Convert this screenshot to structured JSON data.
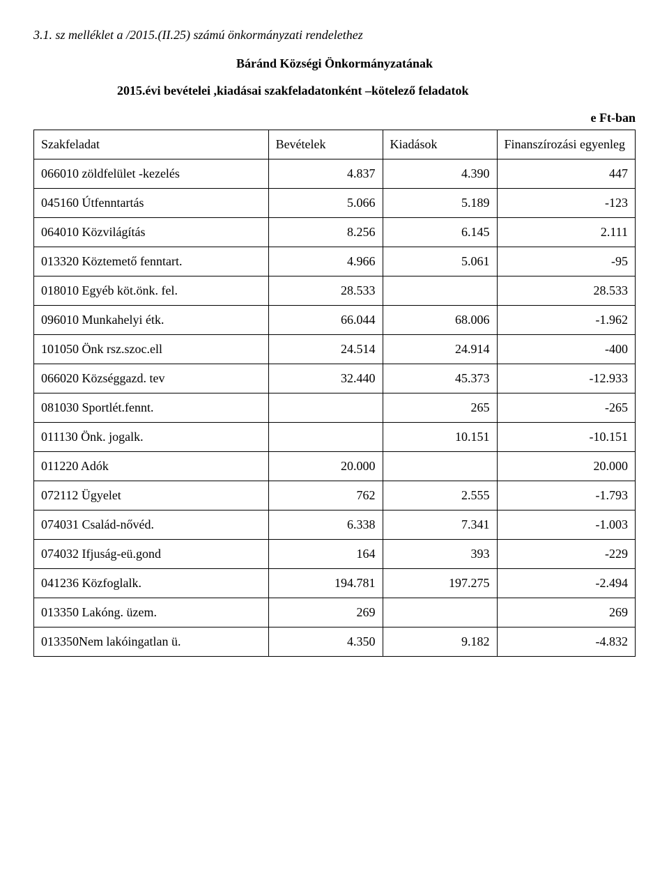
{
  "heading": {
    "line1": "3.1. sz melléklet a  /2015.(II.25) számú önkormányzati rendelethez",
    "line2": "Báránd Községi Önkormányzatának",
    "line3": "2015.évi bevételei ,kiadásai szakfeladatonként –kötelező feladatok",
    "unit": "e Ft-ban"
  },
  "table": {
    "columns": [
      "Szakfeladat",
      "Bevételek",
      "Kiadások",
      "Finanszírozási egyenleg"
    ],
    "rows": [
      {
        "label": "066010 zöldfelület -kezelés",
        "bev": "4.837",
        "kiad": "4.390",
        "egy": "447"
      },
      {
        "label": "045160 Útfenntartás",
        "bev": "5.066",
        "kiad": "5.189",
        "egy": "-123"
      },
      {
        "label": "064010 Közvilágítás",
        "bev": "8.256",
        "kiad": "6.145",
        "egy": "2.111"
      },
      {
        "label": "013320 Köztemető fenntart.",
        "bev": "4.966",
        "kiad": "5.061",
        "egy": "-95"
      },
      {
        "label": "018010 Egyéb köt.önk. fel.",
        "bev": "28.533",
        "kiad": "",
        "egy": "28.533"
      },
      {
        "label": "096010 Munkahelyi étk.",
        "bev": "66.044",
        "kiad": "68.006",
        "egy": "-1.962"
      },
      {
        "label": "101050 Önk rsz.szoc.ell",
        "bev": "24.514",
        "kiad": "24.914",
        "egy": "-400"
      },
      {
        "label": "066020 Községgazd. tev",
        "bev": "32.440",
        "kiad": "45.373",
        "egy": "-12.933"
      },
      {
        "label": "081030 Sportlét.fennt.",
        "bev": "",
        "kiad": "265",
        "egy": "-265"
      },
      {
        "label": "011130 Önk. jogalk.",
        "bev": "",
        "kiad": "10.151",
        "egy": "-10.151"
      },
      {
        "label": "011220 Adók",
        "bev": "20.000",
        "kiad": "",
        "egy": "20.000"
      },
      {
        "label": "072112 Ügyelet",
        "bev": "762",
        "kiad": "2.555",
        "egy": "-1.793"
      },
      {
        "label": "074031 Család-nővéd.",
        "bev": "6.338",
        "kiad": "7.341",
        "egy": "-1.003"
      },
      {
        "label": "074032 Ifjuság-eü.gond",
        "bev": "164",
        "kiad": "393",
        "egy": "-229"
      },
      {
        "label": "041236 Közfoglalk.",
        "bev": "194.781",
        "kiad": "197.275",
        "egy": "-2.494"
      },
      {
        "label": "013350 Lakóng. üzem.",
        "bev": "269",
        "kiad": "",
        "egy": "269"
      },
      {
        "label": "013350Nem lakóingatlan ü.",
        "bev": "4.350",
        "kiad": "9.182",
        "egy": "-4.832"
      }
    ]
  }
}
